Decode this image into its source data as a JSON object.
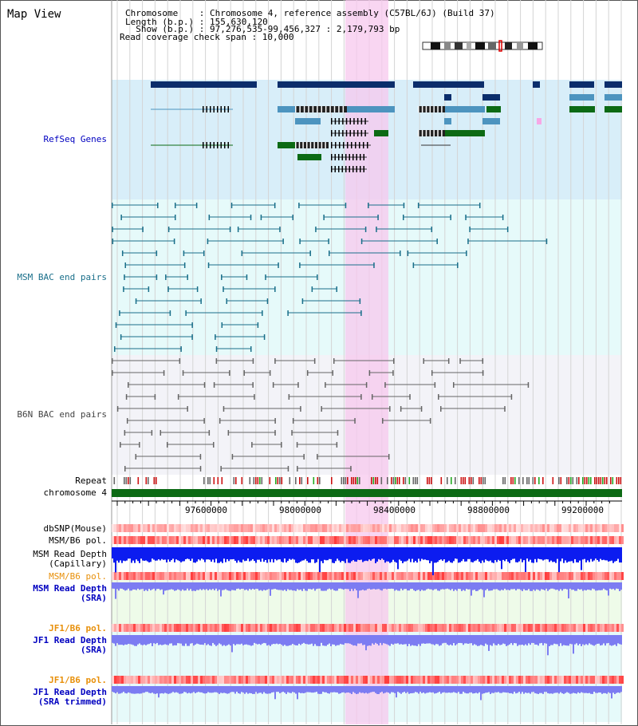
{
  "title": "Map View",
  "info": {
    "chromosome": "Chromosome    : Chromosome 4, reference assembly (C57BL/6J) (Build 37)",
    "length": "Length (b.p.) : 155,630,120",
    "show": "  Show (b.p.) : 97,276,535-99,456,327 : 2,179,793 bp",
    "coverage": "Read coverage check span : 10,000"
  },
  "tracks": {
    "refseq": "RefSeq Genes",
    "msm_bac": "MSM BAC end pairs",
    "b6n_bac": "B6N BAC end pairs",
    "repeat": "Repeat",
    "chromosome": "chromosome 4",
    "dbsnp": "dbSNP(Mouse)",
    "msm_b6_pol": "MSM/B6 pol.",
    "msm_depth_cap_1": "MSM Read Depth",
    "msm_depth_cap_2": "(Capillary)",
    "msm_b6_pol2": "MSM/B6 pol.",
    "msm_depth_sra_1": "MSM Read Depth",
    "msm_depth_sra_2": "(SRA)",
    "jf1_b6_pol": "JF1/B6 pol.",
    "jf1_depth_sra_1": "JF1 Read Depth",
    "jf1_depth_sra_2": "(SRA)",
    "jf1_b6_pol2": "JF1/B6 pol.",
    "jf1_depth_trim_1": "JF1 Read Depth",
    "jf1_depth_trim_2": "(SRA trimmed)"
  },
  "axis": {
    "ticks": [
      "97600000",
      "98000000",
      "98400000",
      "98800000",
      "99200000"
    ]
  },
  "colors": {
    "refseq_dark": "#0b2d6b",
    "refseq_light": "#4d94bf",
    "refseq_green": "#0c6a14",
    "msm_pair": "#1a6f8a",
    "b6n_pair": "#666666",
    "highlight": "#f7c8ee",
    "depth_cap": "#0c1cf0",
    "depth_sra": "#7c7cf2"
  }
}
